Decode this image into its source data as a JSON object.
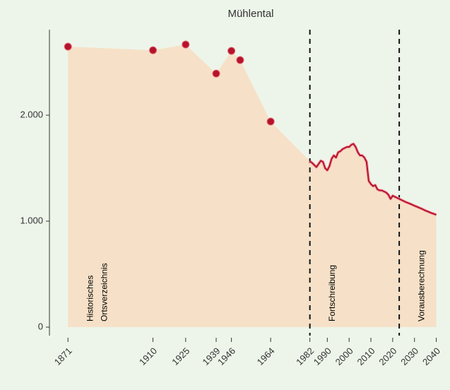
{
  "chart_data": {
    "type": "area-line",
    "title": "Mühlental",
    "xlim": [
      1862.5,
      2045
    ],
    "ylim": [
      -80,
      2807
    ],
    "xticks": [
      1871,
      1910,
      1925,
      1939,
      1946,
      1964,
      1982,
      1990,
      2000,
      2010,
      2020,
      2030,
      2040
    ],
    "yticks": [
      0,
      {
        "value": 1000,
        "label": "1.000"
      },
      {
        "value": 2000,
        "label": "2.000"
      }
    ],
    "dividers": [
      1982,
      2023
    ],
    "periods": [
      {
        "start": 1871,
        "label": [
          "Historisches",
          "Ortsverzeichnis"
        ]
      },
      {
        "start": 1982,
        "label": [
          "Fortschreibung"
        ]
      },
      {
        "start": 2023,
        "label": [
          "Vorausberechnung"
        ]
      }
    ],
    "area_color": "#f6e1c8",
    "points": {
      "color": "#b5132b",
      "x": [
        1871,
        1910,
        1925,
        1939,
        1946,
        1950,
        1964
      ],
      "values": [
        2647,
        2613,
        2667,
        2393,
        2607,
        2520,
        1940
      ]
    },
    "line": {
      "color": "#b5132b",
      "x": [
        1982,
        1983,
        1984,
        1985,
        1986,
        1987,
        1988,
        1989,
        1990,
        1991,
        1992,
        1993,
        1994,
        1995,
        1996,
        1997,
        1998,
        1999,
        2000,
        2001,
        2002,
        2003,
        2004,
        2005,
        2006,
        2007,
        2008,
        2009,
        2010,
        2011,
        2012,
        2013,
        2014,
        2015,
        2016,
        2017,
        2018,
        2019,
        2020,
        2021,
        2022,
        2023,
        2024,
        2025,
        2026,
        2027,
        2028,
        2029,
        2030,
        2031,
        2032,
        2033,
        2034,
        2035,
        2036,
        2037,
        2038,
        2039,
        2040
      ],
      "values": [
        1567,
        1550,
        1530,
        1510,
        1540,
        1570,
        1560,
        1500,
        1480,
        1520,
        1590,
        1620,
        1600,
        1650,
        1660,
        1680,
        1690,
        1700,
        1700,
        1720,
        1730,
        1700,
        1650,
        1620,
        1620,
        1600,
        1560,
        1380,
        1350,
        1330,
        1340,
        1300,
        1290,
        1290,
        1280,
        1270,
        1250,
        1210,
        1240,
        1230,
        1220,
        1210,
        1200,
        1190,
        1180,
        1172,
        1164,
        1155,
        1145,
        1137,
        1128,
        1120,
        1110,
        1100,
        1092,
        1083,
        1075,
        1068,
        1060
      ]
    }
  }
}
